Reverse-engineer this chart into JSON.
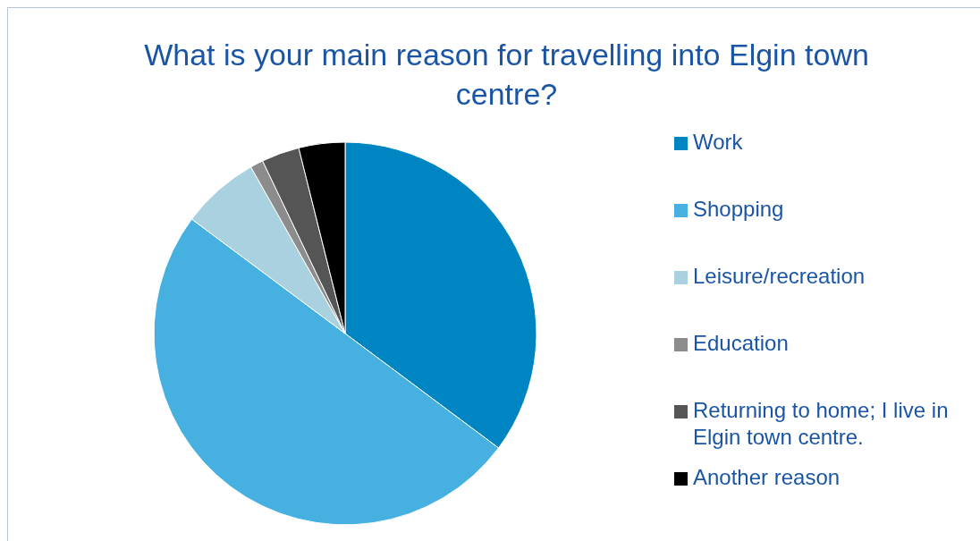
{
  "chart_data": {
    "type": "pie",
    "title": "What is your main reason for travelling into Elgin town centre?",
    "categories": [
      "Work",
      "Shopping",
      "Leisure/recreation",
      "Education",
      "Returning to home; I live in Elgin town centre.",
      "Another reason"
    ],
    "values": [
      35.2,
      50.0,
      6.6,
      1.1,
      3.2,
      3.9
    ],
    "colors": [
      "#0085c3",
      "#46b1e1",
      "#a9d1e0",
      "#8c8c8c",
      "#555555",
      "#000000"
    ],
    "legend": "right"
  }
}
